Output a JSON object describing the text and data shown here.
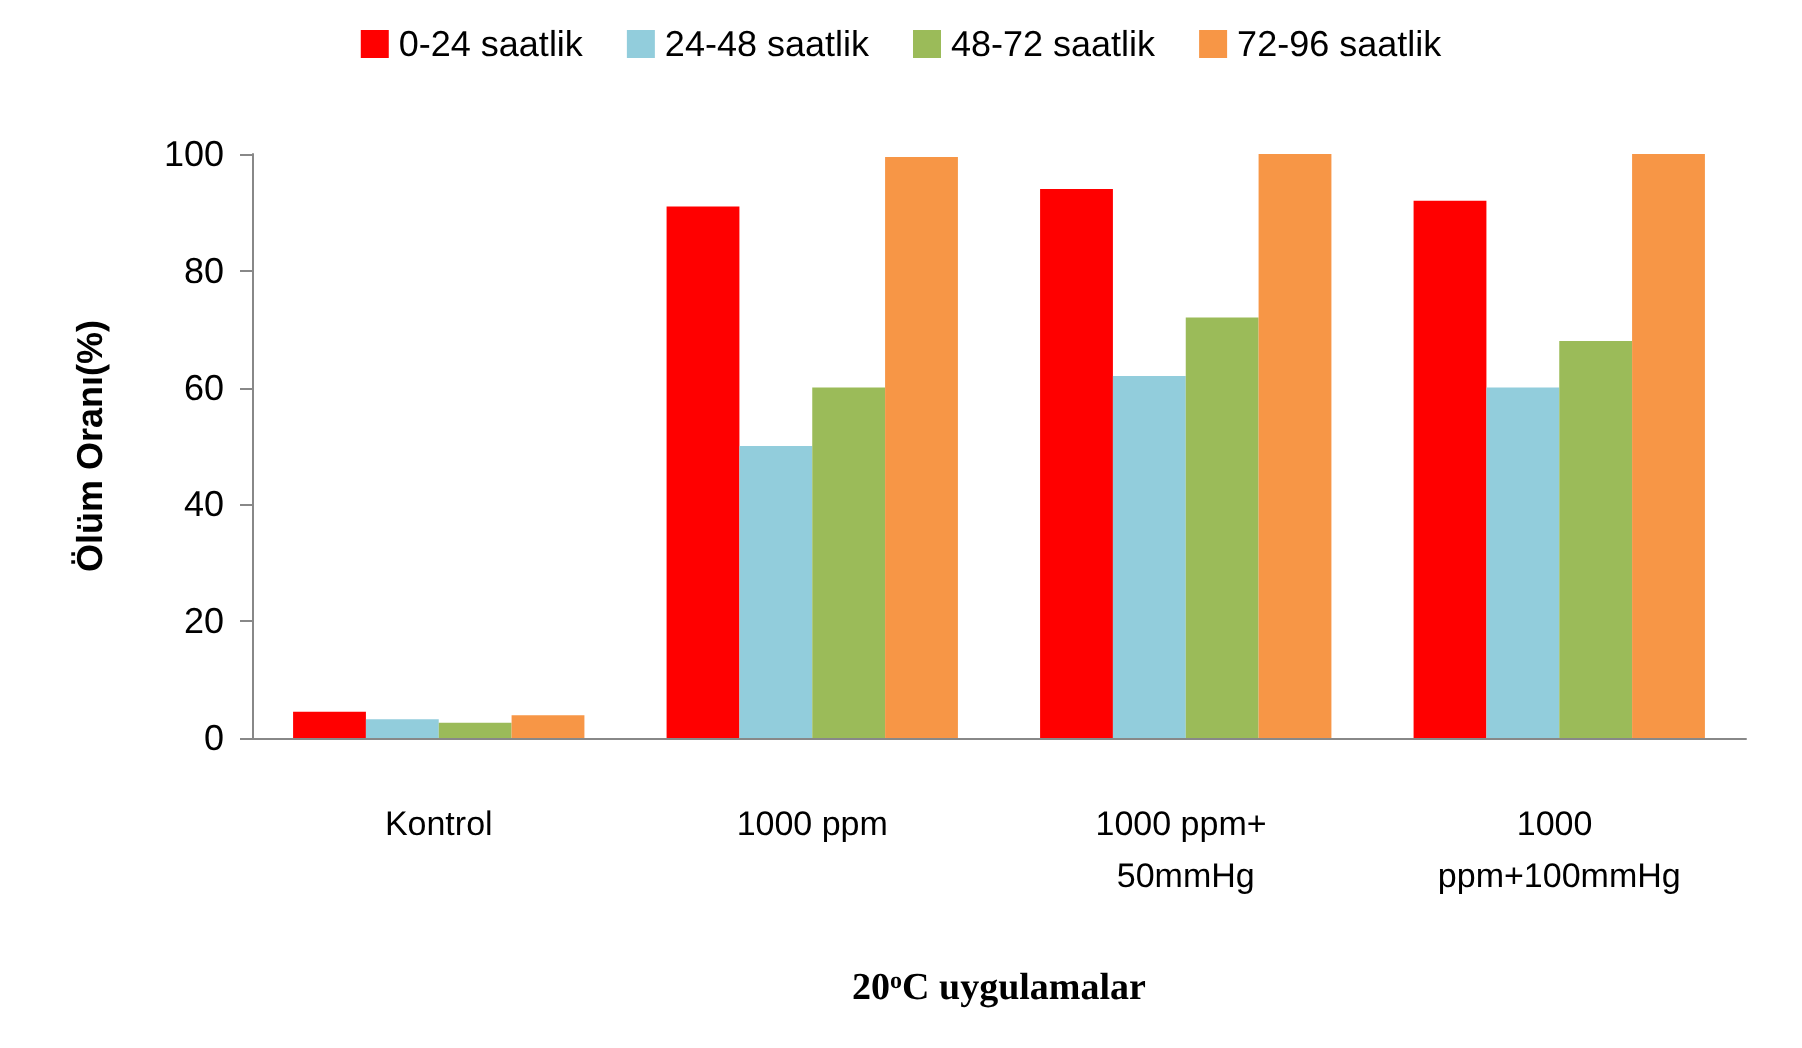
{
  "chart_data": {
    "type": "bar",
    "xlabel": "20$^{o}$C uygulamalar",
    "ylabel": "Ölüm Oranı(%)",
    "categories": [
      "Kontrol",
      "1000 ppm",
      "1000 ppm+ 50mmHg",
      "1000 ppm+100mmHg"
    ],
    "series": [
      {
        "name": "0-24 saatlik",
        "color": "#ff0000",
        "values": [
          4.5,
          91,
          94,
          92
        ]
      },
      {
        "name": "24-48 saatlik",
        "color": "#92cddc",
        "values": [
          3.2,
          50,
          62,
          60
        ]
      },
      {
        "name": "48-72 saatlik",
        "color": "#9bbb59",
        "values": [
          2.6,
          60,
          72,
          68
        ]
      },
      {
        "name": "72-96 saatlik",
        "color": "#f79646",
        "values": [
          3.9,
          99.5,
          100,
          100
        ]
      }
    ],
    "ylim": [
      0,
      100
    ],
    "yticks": [
      0,
      20,
      40,
      60,
      80,
      100
    ],
    "grid": false,
    "legend": "top"
  }
}
